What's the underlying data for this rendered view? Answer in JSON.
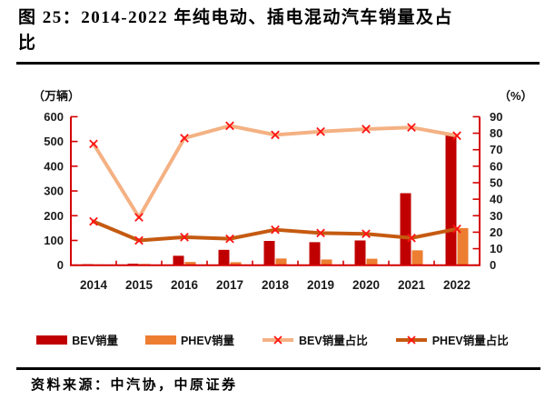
{
  "header": {
    "title_line1": "图 25：2014-2022 年纯电动、插电混动汽车销量及占",
    "title_line2": "比"
  },
  "footer": {
    "source": "资料来源：中汽协，中原证券"
  },
  "chart_data": {
    "type": "bar+line combo",
    "title": "2014-2022 年纯电动、插电混动汽车销量及占比",
    "categories": [
      "2014",
      "2015",
      "2016",
      "2017",
      "2018",
      "2019",
      "2020",
      "2021",
      "2022"
    ],
    "left_axis": {
      "unit": "（万辆）",
      "lim": [
        0,
        600
      ],
      "ticks": [
        0,
        100,
        200,
        300,
        400,
        500,
        600
      ]
    },
    "right_axis": {
      "unit": "（%）",
      "lim": [
        0,
        90
      ],
      "ticks": [
        0,
        10,
        20,
        30,
        40,
        50,
        60,
        70,
        80,
        90
      ]
    },
    "series": [
      {
        "name": "BEV销量",
        "type": "bar",
        "axis": "left",
        "color": "#C00000",
        "values": [
          4,
          6,
          38,
          62,
          98,
          93,
          100,
          291,
          525
        ]
      },
      {
        "name": "PHEV销量",
        "type": "bar",
        "axis": "left",
        "color": "#ED7D31",
        "values": [
          3,
          5,
          13,
          12,
          27,
          23,
          26,
          60,
          150
        ]
      },
      {
        "name": "BEV销量占比",
        "type": "line",
        "axis": "right",
        "color": "#F4B183",
        "marker": "x",
        "marker_color": "#FF1414",
        "values": [
          73.5,
          29,
          77,
          84.5,
          79,
          81,
          82.5,
          83.5,
          78.5
        ]
      },
      {
        "name": "PHEV销量占比",
        "type": "line",
        "axis": "right",
        "color": "#C55A11",
        "marker": "x",
        "marker_color": "#FF1414",
        "values": [
          26.5,
          15,
          17,
          16,
          21.5,
          19.5,
          19,
          16.5,
          22
        ]
      }
    ],
    "axis_color": "#D40000",
    "grid": "off",
    "legend_position": "bottom"
  }
}
